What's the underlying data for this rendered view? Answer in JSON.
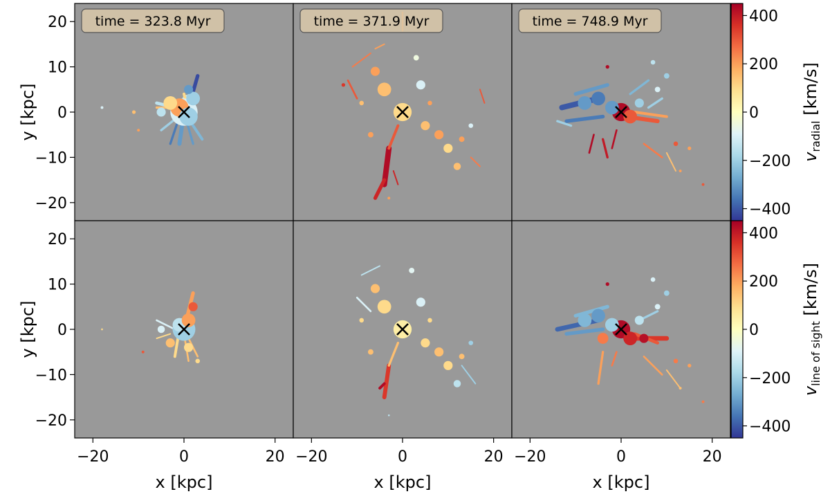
{
  "chart_data": {
    "type": "heatmap",
    "grid": false,
    "xlabel": "x [kpc]",
    "ylabel": "y [kpc]",
    "xlim": [
      -24,
      24
    ],
    "ylim": [
      -24,
      24
    ],
    "xticks": [
      -20,
      0,
      20
    ],
    "yticks": [
      -20,
      -10,
      0,
      10,
      20
    ],
    "background_color": "#999999",
    "center_marker": {
      "symbol": "x",
      "x": 0,
      "y": 0
    },
    "colormap": [
      "#313695",
      "#4575b4",
      "#74add1",
      "#abd9e9",
      "#e0f3f8",
      "#ffffbf",
      "#fee090",
      "#fdae61",
      "#f46d43",
      "#d73027",
      "#a50026"
    ],
    "time_labels": [
      "time = 323.8 Myr",
      "time = 371.9 Myr",
      "time = 748.9 Myr"
    ],
    "colorbars": [
      {
        "label_main": "v",
        "label_sub": "radial",
        "label_unit": " [km/s]",
        "range": [
          -450,
          450
        ],
        "ticks": [
          -400,
          -200,
          0,
          200,
          400
        ]
      },
      {
        "label_main": "v",
        "label_sub": "line of sight",
        "label_unit": " [km/s]",
        "range": [
          -450,
          450
        ],
        "ticks": [
          -400,
          -200,
          0,
          200,
          400
        ]
      }
    ],
    "panels": [
      {
        "row": 0,
        "col": 0,
        "quantity": "radial velocity",
        "strokes": [
          [
            -1,
            0,
            0.5,
            3,
            1.6,
            -150
          ],
          [
            0,
            0,
            -1,
            -7,
            0.9,
            -300
          ],
          [
            1,
            1,
            3,
            8,
            0.8,
            -420
          ],
          [
            0,
            0,
            4,
            -6,
            0.6,
            -250
          ],
          [
            0,
            0,
            -5,
            -4,
            0.5,
            -200
          ],
          [
            -2,
            1,
            -6,
            2,
            0.7,
            -150
          ],
          [
            0,
            0,
            2,
            -7,
            0.5,
            -300
          ],
          [
            1,
            0,
            0,
            4,
            0.6,
            100
          ],
          [
            -1,
            -1,
            -3,
            -7,
            0.5,
            -350
          ],
          [
            -3,
            1,
            -6,
            1,
            0.5,
            150
          ]
        ],
        "blobs": [
          [
            0,
            0,
            3,
            -100
          ],
          [
            -1,
            1,
            2,
            200
          ],
          [
            1,
            -1,
            2,
            -200
          ],
          [
            -3,
            2,
            1.5,
            100
          ],
          [
            -5,
            0,
            1,
            -150
          ],
          [
            2,
            3,
            1.5,
            -200
          ],
          [
            -11,
            0,
            0.4,
            150
          ],
          [
            -10,
            -4,
            0.3,
            200
          ],
          [
            -18,
            1,
            0.3,
            -100
          ],
          [
            1,
            5,
            1,
            -300
          ]
        ]
      },
      {
        "row": 0,
        "col": 1,
        "quantity": "radial velocity",
        "strokes": [
          [
            -3,
            -8,
            -4,
            -16,
            1.2,
            430
          ],
          [
            -4,
            -15,
            -6,
            -19,
            0.8,
            380
          ],
          [
            -1,
            -3,
            -3,
            -8,
            0.6,
            300
          ],
          [
            -11,
            10,
            -7,
            13,
            0.3,
            250
          ],
          [
            -12,
            7,
            -10,
            3,
            0.4,
            300
          ],
          [
            0,
            18,
            0,
            22,
            0.4,
            200
          ],
          [
            17,
            5,
            18,
            2,
            0.3,
            300
          ],
          [
            15,
            -10,
            17,
            -12,
            0.3,
            250
          ],
          [
            -2,
            -13,
            -1,
            -16,
            0.3,
            380
          ],
          [
            -6,
            14,
            -4,
            15,
            0.3,
            200
          ]
        ],
        "blobs": [
          [
            0,
            0,
            2,
            100
          ],
          [
            -4,
            5,
            1.5,
            150
          ],
          [
            -6,
            9,
            1,
            200
          ],
          [
            4,
            6,
            1,
            -100
          ],
          [
            5,
            -3,
            1,
            150
          ],
          [
            8,
            -5,
            1,
            200
          ],
          [
            10,
            -8,
            1,
            100
          ],
          [
            12,
            -12,
            0.8,
            150
          ],
          [
            -7,
            -5,
            0.6,
            200
          ],
          [
            3,
            12,
            0.6,
            -50
          ],
          [
            -9,
            2,
            0.5,
            150
          ],
          [
            13,
            -6,
            0.6,
            200
          ],
          [
            -3,
            -19,
            0.3,
            200
          ],
          [
            15,
            -3,
            0.5,
            -100
          ],
          [
            6,
            2,
            0.5,
            200
          ],
          [
            -13,
            6,
            0.4,
            350
          ]
        ]
      },
      {
        "row": 0,
        "col": 2,
        "quantity": "radial velocity",
        "strokes": [
          [
            -13,
            1,
            -5,
            3,
            1.2,
            -400
          ],
          [
            -10,
            4,
            -3,
            6,
            0.8,
            -300
          ],
          [
            -12,
            -2,
            -4,
            -1,
            0.8,
            -350
          ],
          [
            1,
            -1,
            8,
            -2,
            0.9,
            300
          ],
          [
            3,
            0,
            10,
            -1,
            0.6,
            200
          ],
          [
            -4,
            -6,
            -3,
            -10,
            0.5,
            400
          ],
          [
            -6,
            -5,
            -7,
            -9,
            0.4,
            430
          ],
          [
            -1,
            -4,
            -2,
            -8,
            0.4,
            420
          ],
          [
            5,
            -7,
            9,
            -10,
            0.4,
            250
          ],
          [
            10,
            -9,
            12,
            -13,
            0.3,
            150
          ],
          [
            -14,
            -2,
            -11,
            -3,
            0.5,
            -200
          ],
          [
            2,
            4,
            6,
            7,
            0.5,
            -250
          ],
          [
            6,
            1,
            9,
            3,
            0.5,
            -200
          ]
        ],
        "blobs": [
          [
            0,
            0,
            2,
            430
          ],
          [
            -2,
            1,
            1.5,
            -300
          ],
          [
            2,
            -1,
            1.5,
            300
          ],
          [
            -5,
            3,
            1.5,
            -350
          ],
          [
            -8,
            2,
            1.5,
            -300
          ],
          [
            4,
            2,
            1,
            -200
          ],
          [
            8,
            5,
            0.6,
            -100
          ],
          [
            10,
            8,
            0.6,
            -200
          ],
          [
            7,
            11,
            0.5,
            -150
          ],
          [
            12,
            -7,
            0.5,
            300
          ],
          [
            15,
            -8,
            0.4,
            200
          ],
          [
            18,
            -16,
            0.3,
            300
          ],
          [
            -3,
            10,
            0.4,
            430
          ],
          [
            13,
            -13,
            0.3,
            200
          ]
        ]
      },
      {
        "row": 1,
        "col": 0,
        "quantity": "line of sight velocity",
        "strokes": [
          [
            0,
            0,
            2,
            8,
            0.8,
            200
          ],
          [
            -1,
            0,
            -2,
            -6,
            0.6,
            100
          ],
          [
            0,
            0,
            3,
            -6,
            0.4,
            150
          ],
          [
            -2,
            0,
            -6,
            2,
            0.4,
            -100
          ],
          [
            0,
            -1,
            1,
            -7,
            0.4,
            150
          ],
          [
            -3,
            -1,
            -6,
            -2,
            0.3,
            100
          ]
        ],
        "blobs": [
          [
            0,
            0,
            2.5,
            -200
          ],
          [
            -1,
            1,
            1.5,
            -150
          ],
          [
            1,
            2,
            1.5,
            200
          ],
          [
            2,
            5,
            1,
            300
          ],
          [
            -3,
            -3,
            1,
            150
          ],
          [
            -5,
            0,
            0.8,
            -100
          ],
          [
            1,
            -4,
            1,
            100
          ],
          [
            -9,
            -5,
            0.3,
            300
          ],
          [
            -18,
            0,
            0.2,
            100
          ],
          [
            3,
            -7,
            0.5,
            100
          ]
        ]
      },
      {
        "row": 1,
        "col": 1,
        "quantity": "line of sight velocity",
        "strokes": [
          [
            -3,
            -8,
            -4,
            -15,
            0.9,
            350
          ],
          [
            -4,
            -12,
            -5,
            -13,
            0.6,
            430
          ],
          [
            -1,
            -3,
            -3,
            -8,
            0.5,
            150
          ],
          [
            -9,
            12,
            -5,
            14,
            0.3,
            -150
          ],
          [
            -10,
            7,
            -7,
            4,
            0.4,
            -100
          ],
          [
            13,
            -8,
            16,
            -12,
            0.3,
            -200
          ]
        ],
        "blobs": [
          [
            0,
            0,
            2,
            50
          ],
          [
            -4,
            5,
            1.5,
            100
          ],
          [
            -6,
            9,
            1,
            150
          ],
          [
            4,
            6,
            1,
            -100
          ],
          [
            5,
            -3,
            1,
            100
          ],
          [
            8,
            -5,
            1,
            150
          ],
          [
            10,
            -8,
            1,
            100
          ],
          [
            12,
            -12,
            0.8,
            -150
          ],
          [
            -7,
            -5,
            0.6,
            150
          ],
          [
            2,
            13,
            0.6,
            -80
          ],
          [
            -9,
            2,
            0.5,
            100
          ],
          [
            13,
            -6,
            0.6,
            150
          ],
          [
            15,
            -3,
            0.5,
            -200
          ],
          [
            6,
            2,
            0.5,
            100
          ],
          [
            -3,
            -19,
            0.2,
            -150
          ]
        ]
      },
      {
        "row": 1,
        "col": 2,
        "quantity": "line of sight velocity",
        "strokes": [
          [
            -14,
            0,
            -5,
            2,
            1,
            -380
          ],
          [
            -10,
            3,
            -3,
            5,
            0.8,
            -250
          ],
          [
            -12,
            -1,
            -4,
            0,
            0.8,
            -300
          ],
          [
            1,
            -2,
            10,
            -2,
            1,
            350
          ],
          [
            3,
            -1,
            8,
            -3,
            0.7,
            300
          ],
          [
            -4,
            -5,
            -5,
            -12,
            0.5,
            200
          ],
          [
            -1,
            -5,
            -2,
            -8,
            0.4,
            250
          ],
          [
            5,
            -6,
            9,
            -10,
            0.4,
            200
          ],
          [
            10,
            -9,
            13,
            -13,
            0.3,
            150
          ],
          [
            4,
            2,
            8,
            4,
            0.5,
            -200
          ]
        ],
        "blobs": [
          [
            0,
            0,
            2,
            430
          ],
          [
            -2,
            1,
            1.5,
            -200
          ],
          [
            2,
            -2,
            1.5,
            380
          ],
          [
            -5,
            3,
            1.5,
            -300
          ],
          [
            -8,
            2,
            1.5,
            -250
          ],
          [
            -4,
            -2,
            1.2,
            250
          ],
          [
            4,
            2,
            1,
            -150
          ],
          [
            8,
            5,
            0.6,
            -100
          ],
          [
            10,
            8,
            0.6,
            -200
          ],
          [
            7,
            11,
            0.5,
            -100
          ],
          [
            12,
            -7,
            0.5,
            250
          ],
          [
            15,
            -8,
            0.4,
            200
          ],
          [
            18,
            -16,
            0.3,
            250
          ],
          [
            -3,
            10,
            0.4,
            430
          ],
          [
            13,
            -13,
            0.3,
            150
          ],
          [
            5,
            -2,
            1,
            420
          ]
        ]
      }
    ]
  }
}
